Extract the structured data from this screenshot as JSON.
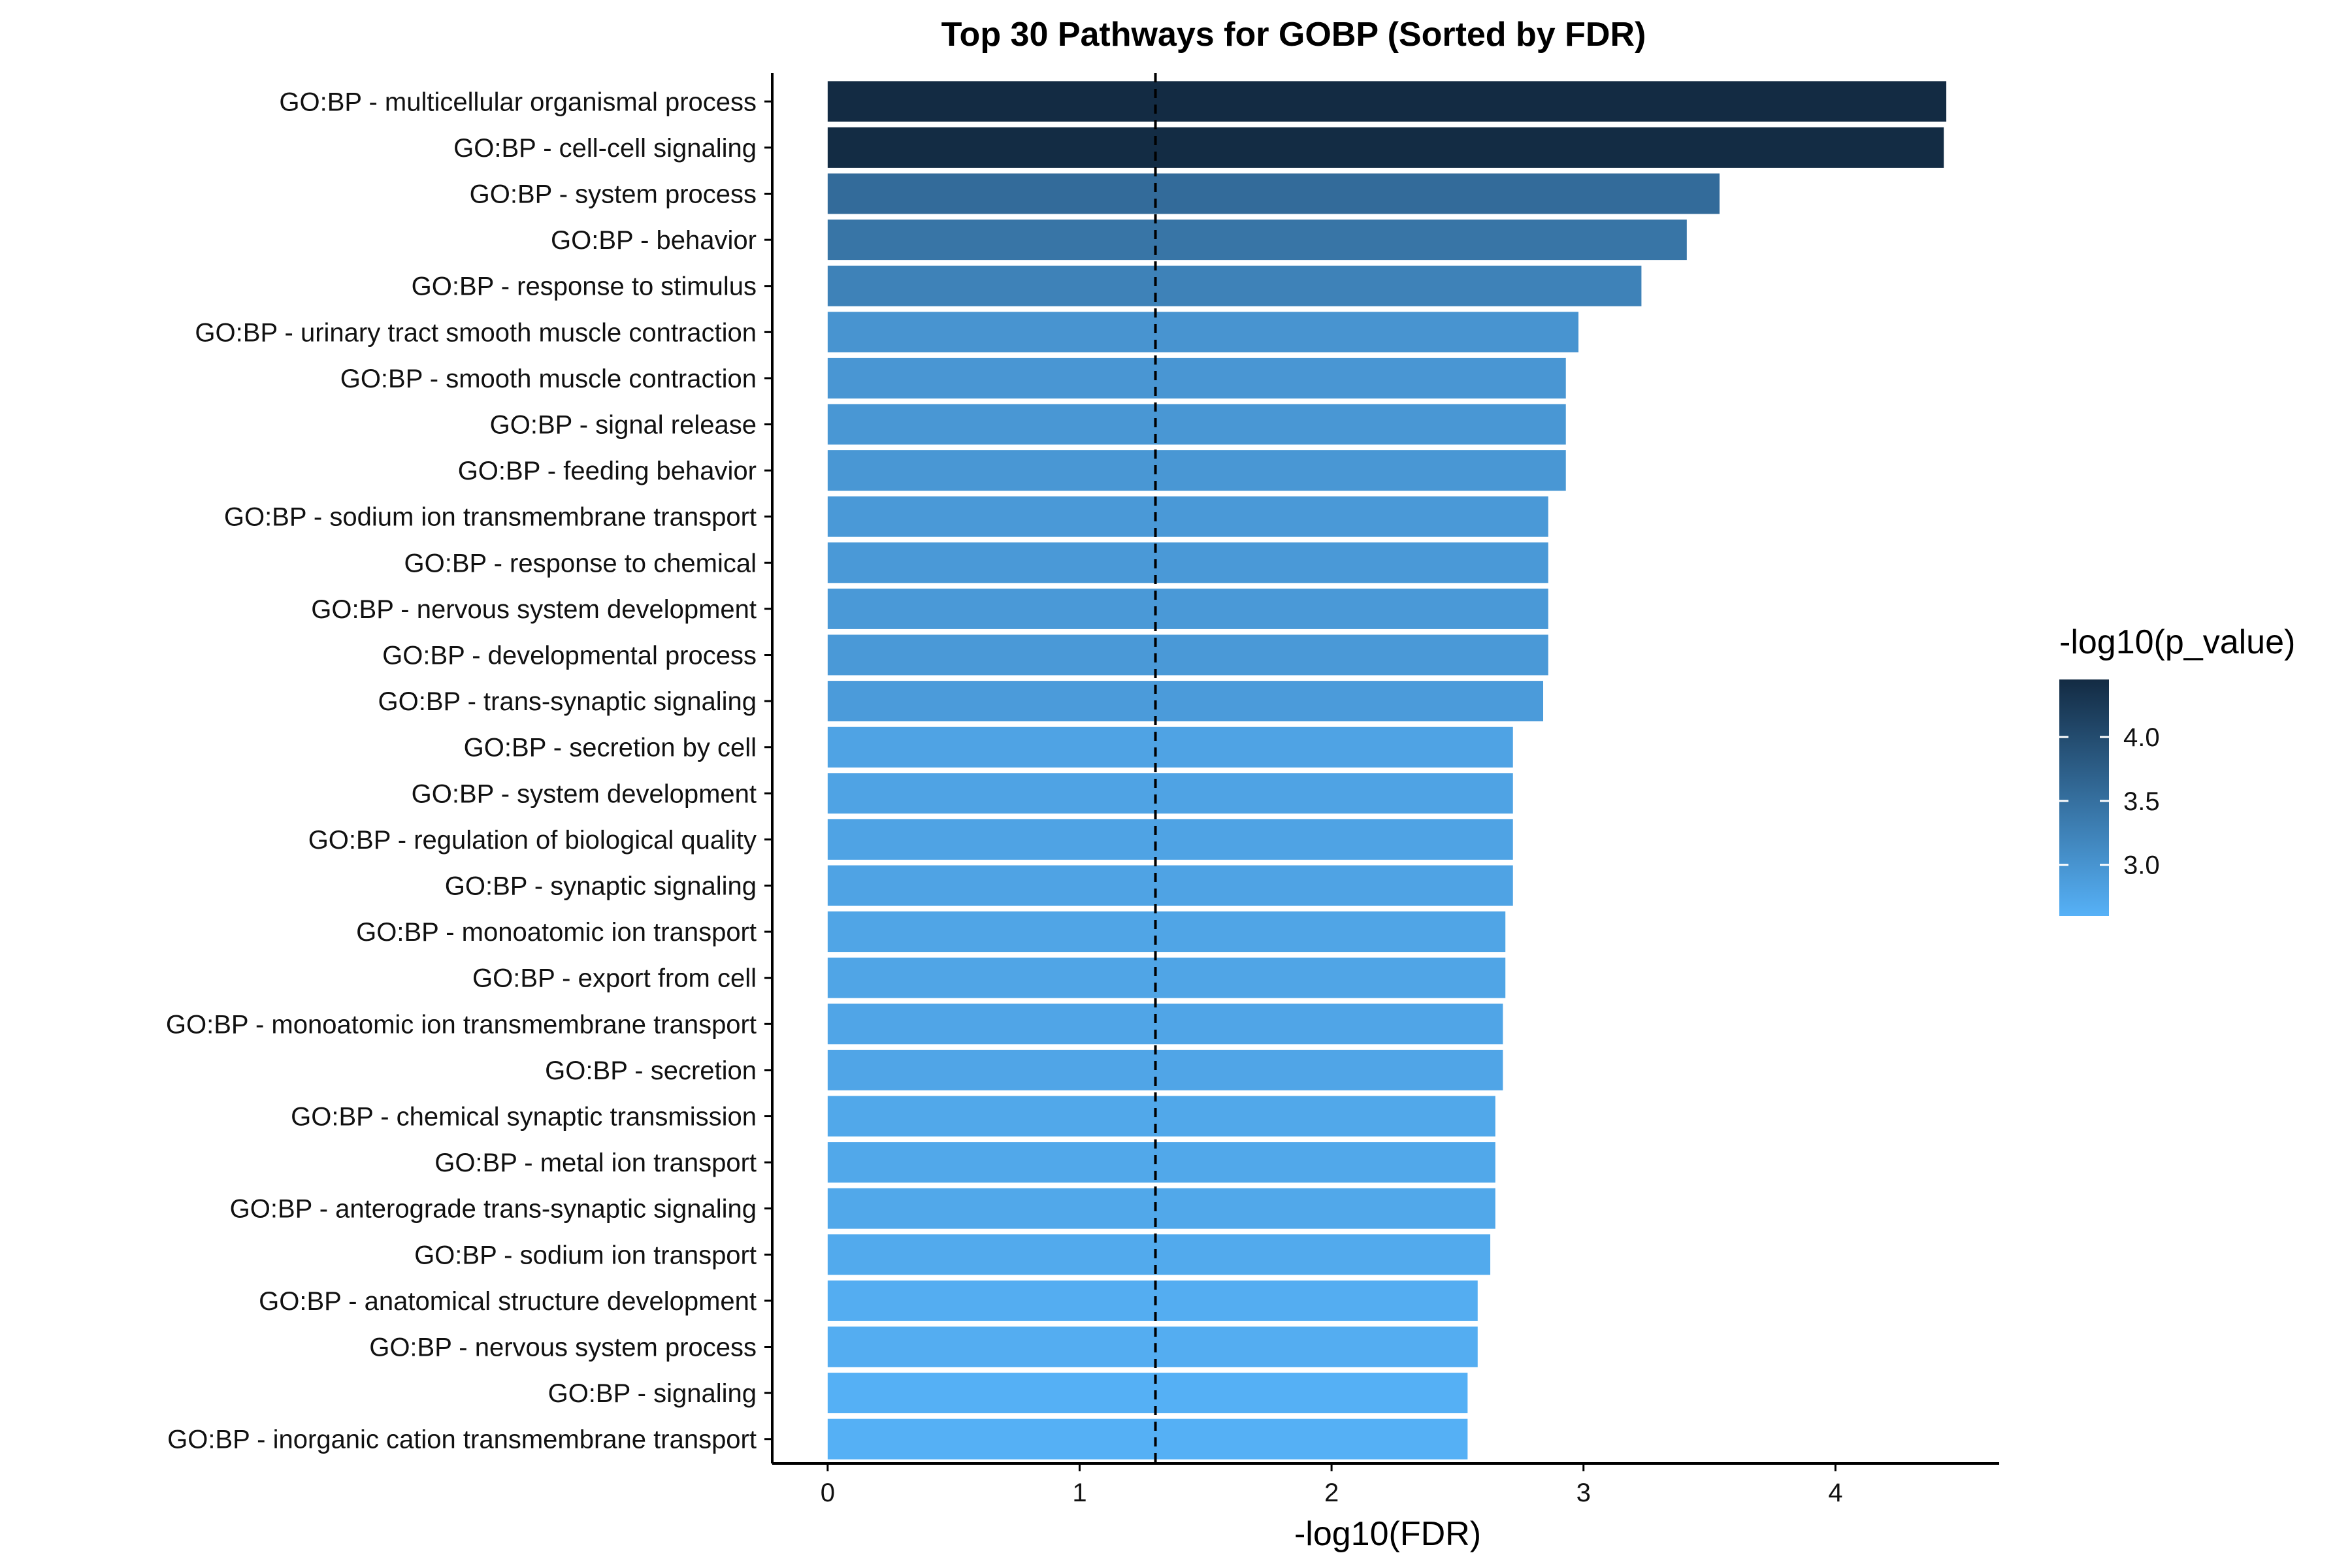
{
  "chart_data": {
    "type": "bar",
    "orientation": "horizontal",
    "title": "Top 30 Pathways for GOBP (Sorted by FDR)",
    "xlabel": "-log10(FDR)",
    "ylabel": "",
    "xlim": [
      -0.22,
      4.65
    ],
    "x_ticks": [
      0,
      1,
      2,
      3,
      4
    ],
    "threshold_line": 1.301,
    "grid": false,
    "legend": {
      "title": "-log10(p_value)",
      "placement": "right",
      "ticks": [
        3.0,
        3.5,
        4.0
      ],
      "range": [
        2.6,
        4.45
      ],
      "color_low": "#56B1F7",
      "color_high": "#132B43"
    },
    "categories": [
      "GO:BP - multicellular organismal process",
      "GO:BP - cell-cell signaling",
      "GO:BP - system process",
      "GO:BP - behavior",
      "GO:BP - response to stimulus",
      "GO:BP - urinary tract smooth muscle contraction",
      "GO:BP - smooth muscle contraction",
      "GO:BP - signal release",
      "GO:BP - feeding behavior",
      "GO:BP - sodium ion transmembrane transport",
      "GO:BP - response to chemical",
      "GO:BP - nervous system development",
      "GO:BP - developmental process",
      "GO:BP - trans-synaptic signaling",
      "GO:BP - secretion by cell",
      "GO:BP - system development",
      "GO:BP - regulation of biological quality",
      "GO:BP - synaptic signaling",
      "GO:BP - monoatomic ion transport",
      "GO:BP - export from cell",
      "GO:BP - monoatomic ion transmembrane transport",
      "GO:BP - secretion",
      "GO:BP - chemical synaptic transmission",
      "GO:BP - metal ion transport",
      "GO:BP - anterograde trans-synaptic signaling",
      "GO:BP - sodium ion transport",
      "GO:BP - anatomical structure development",
      "GO:BP - nervous system process",
      "GO:BP - signaling",
      "GO:BP - inorganic cation transmembrane transport"
    ],
    "values": [
      4.44,
      4.43,
      3.54,
      3.41,
      3.23,
      2.98,
      2.93,
      2.93,
      2.93,
      2.86,
      2.86,
      2.86,
      2.86,
      2.84,
      2.72,
      2.72,
      2.72,
      2.72,
      2.69,
      2.69,
      2.68,
      2.68,
      2.65,
      2.65,
      2.65,
      2.63,
      2.58,
      2.58,
      2.54,
      2.54
    ],
    "color_values": [
      4.45,
      4.44,
      3.56,
      3.43,
      3.25,
      3.0,
      2.97,
      2.96,
      2.96,
      2.93,
      2.93,
      2.93,
      2.93,
      2.9,
      2.8,
      2.8,
      2.8,
      2.8,
      2.77,
      2.77,
      2.76,
      2.76,
      2.73,
      2.73,
      2.73,
      2.7,
      2.66,
      2.66,
      2.62,
      2.62
    ]
  }
}
